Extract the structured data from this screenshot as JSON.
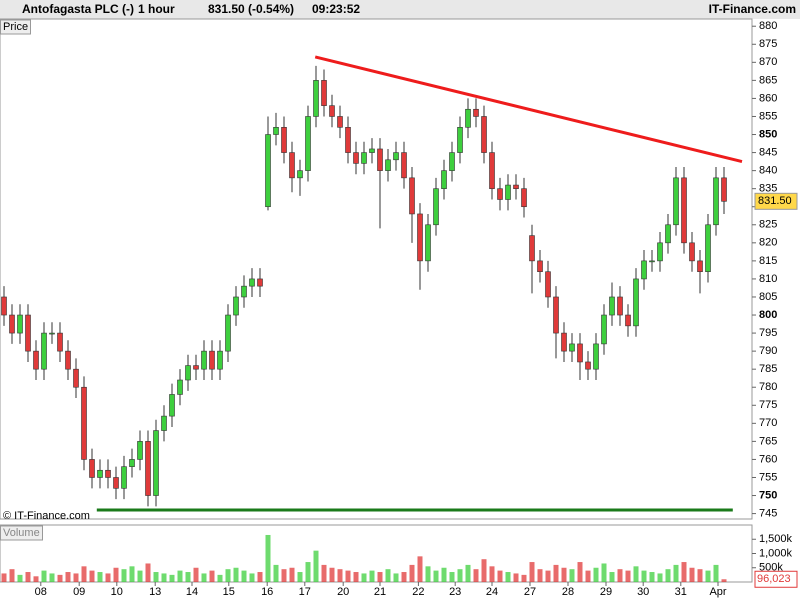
{
  "header": {
    "name": "Antofagasta PLC (-)",
    "interval": "1 hour",
    "quote": "831.50 (-0.54%)",
    "time": "09:23:52",
    "site": "IT-Finance.com"
  },
  "chart_data": {
    "type": "candlestick",
    "panel_label": "Price",
    "copyright": "© IT-Finance.com",
    "up_color": "#3ecf3e",
    "down_color": "#e03a3a",
    "grid": false,
    "open": [
      805,
      800,
      795,
      800,
      790,
      785,
      795,
      795,
      790,
      785,
      780,
      760,
      755,
      757,
      755,
      752,
      758,
      760,
      765,
      750,
      768,
      772,
      778,
      782,
      786,
      785,
      790,
      785,
      790,
      800,
      805,
      808,
      810,
      830,
      850,
      852,
      845,
      838,
      840,
      855,
      865,
      858,
      855,
      852,
      845,
      842,
      845,
      846,
      840,
      843,
      845,
      838,
      828,
      815,
      825,
      835,
      840,
      845,
      852,
      857,
      855,
      845,
      835,
      832,
      836,
      835,
      822,
      815,
      812,
      805,
      795,
      790,
      792,
      787,
      785,
      792,
      800,
      805,
      800,
      797,
      810,
      815,
      815,
      820,
      825,
      838,
      820,
      815,
      812,
      825,
      838
    ],
    "high": [
      808,
      803,
      803,
      803,
      793,
      798,
      798,
      798,
      793,
      788,
      783,
      763,
      760,
      760,
      758,
      761,
      763,
      768,
      768,
      771,
      775,
      781,
      785,
      789,
      789,
      793,
      793,
      793,
      803,
      808,
      811,
      813,
      813,
      855,
      856,
      855,
      848,
      843,
      858,
      869,
      868,
      861,
      858,
      855,
      848,
      848,
      849,
      849,
      846,
      848,
      848,
      841,
      831,
      828,
      838,
      843,
      848,
      855,
      860,
      860,
      858,
      848,
      838,
      839,
      839,
      838,
      825,
      818,
      815,
      808,
      798,
      795,
      795,
      790,
      795,
      803,
      809,
      808,
      803,
      813,
      818,
      818,
      823,
      828,
      841,
      841,
      823,
      818,
      828,
      841,
      841
    ],
    "low": [
      797,
      792,
      792,
      787,
      782,
      782,
      792,
      787,
      782,
      777,
      757,
      752,
      752,
      752,
      749,
      749,
      755,
      757,
      747,
      747,
      765,
      769,
      775,
      779,
      782,
      782,
      782,
      782,
      787,
      797,
      802,
      805,
      805,
      829,
      847,
      842,
      834,
      833,
      837,
      852,
      855,
      852,
      849,
      842,
      839,
      839,
      842,
      824,
      837,
      840,
      835,
      820,
      807,
      812,
      822,
      832,
      837,
      842,
      849,
      852,
      842,
      832,
      829,
      829,
      832,
      827,
      806,
      809,
      802,
      788,
      787,
      787,
      782,
      782,
      782,
      789,
      797,
      797,
      794,
      794,
      807,
      812,
      812,
      817,
      822,
      817,
      812,
      806,
      809,
      822,
      828
    ],
    "close": [
      800,
      795,
      800,
      790,
      785,
      795,
      795,
      790,
      785,
      780,
      760,
      755,
      757,
      755,
      752,
      758,
      760,
      765,
      750,
      768,
      772,
      778,
      782,
      786,
      785,
      790,
      785,
      790,
      800,
      805,
      808,
      810,
      808,
      850,
      852,
      845,
      838,
      840,
      855,
      865,
      858,
      855,
      852,
      845,
      842,
      845,
      846,
      840,
      843,
      845,
      838,
      828,
      815,
      825,
      835,
      840,
      845,
      852,
      857,
      855,
      845,
      835,
      832,
      836,
      835,
      830,
      815,
      812,
      805,
      795,
      790,
      792,
      787,
      785,
      792,
      800,
      805,
      800,
      797,
      810,
      815,
      815,
      820,
      825,
      838,
      820,
      815,
      812,
      825,
      838,
      831.5
    ],
    "last_label": {
      "value": 831.5,
      "label": "831.50"
    },
    "xlim": [
      -0.5,
      93.5
    ],
    "xticks": [
      {
        "value": 4.6,
        "label": "08"
      },
      {
        "value": 9.4,
        "label": "09"
      },
      {
        "value": 14.1,
        "label": "10"
      },
      {
        "value": 18.9,
        "label": "13"
      },
      {
        "value": 23.5,
        "label": "14"
      },
      {
        "value": 28.1,
        "label": "15"
      },
      {
        "value": 32.9,
        "label": "16"
      },
      {
        "value": 37.6,
        "label": "17"
      },
      {
        "value": 42.4,
        "label": "20"
      },
      {
        "value": 47,
        "label": "21"
      },
      {
        "value": 51.8,
        "label": "22"
      },
      {
        "value": 56.4,
        "label": "23"
      },
      {
        "value": 61,
        "label": "24"
      },
      {
        "value": 65.75,
        "label": "27"
      },
      {
        "value": 70.5,
        "label": "28"
      },
      {
        "value": 75.25,
        "label": "29"
      },
      {
        "value": 79.9,
        "label": "30"
      },
      {
        "value": 84.6,
        "label": "31"
      },
      {
        "value": 89.25,
        "label": "Apr"
      }
    ],
    "ylim": [
      743.5,
      882
    ],
    "yticks": [
      880,
      875,
      870,
      865,
      860,
      855,
      850,
      845,
      840,
      835,
      830,
      825,
      820,
      815,
      810,
      805,
      800,
      795,
      790,
      785,
      780,
      775,
      770,
      765,
      760,
      755,
      750,
      745
    ],
    "trendlines": [
      {
        "x": [
          38.9,
          92.25
        ],
        "y": [
          871.5,
          842.5
        ],
        "color": "#ee1c1c"
      },
      {
        "x": [
          11.6,
          91.1
        ],
        "y": [
          746,
          746
        ],
        "color": "#1a7a1a"
      }
    ],
    "volume": {
      "label": "Volume",
      "ylim": [
        0,
        2000000
      ],
      "yticks": [
        {
          "value": 1500000,
          "label": "1,500k"
        },
        {
          "value": 1000000,
          "label": "1,000k"
        },
        {
          "value": 500000,
          "label": "500k"
        }
      ],
      "values": [
        300000,
        450000,
        250000,
        350000,
        200000,
        400000,
        300000,
        250000,
        350000,
        300000,
        550000,
        400000,
        350000,
        300000,
        500000,
        450000,
        550000,
        400000,
        650000,
        350000,
        300000,
        250000,
        400000,
        350000,
        500000,
        300000,
        400000,
        250000,
        450000,
        500000,
        400000,
        300000,
        350000,
        1650000,
        600000,
        450000,
        500000,
        350000,
        700000,
        1100000,
        600000,
        500000,
        450000,
        400000,
        350000,
        300000,
        400000,
        350000,
        450000,
        300000,
        350000,
        600000,
        900000,
        550000,
        400000,
        500000,
        350000,
        450000,
        600000,
        450000,
        800000,
        550000,
        400000,
        350000,
        300000,
        250000,
        700000,
        450000,
        400000,
        600000,
        500000,
        450000,
        700000,
        400000,
        500000,
        650000,
        350000,
        450000,
        400000,
        550000,
        400000,
        350000,
        300000,
        450000,
        600000,
        700000,
        500000,
        450000,
        400000,
        600000,
        96023
      ],
      "last_label": {
        "value": 96023,
        "label": "96,023"
      }
    }
  }
}
